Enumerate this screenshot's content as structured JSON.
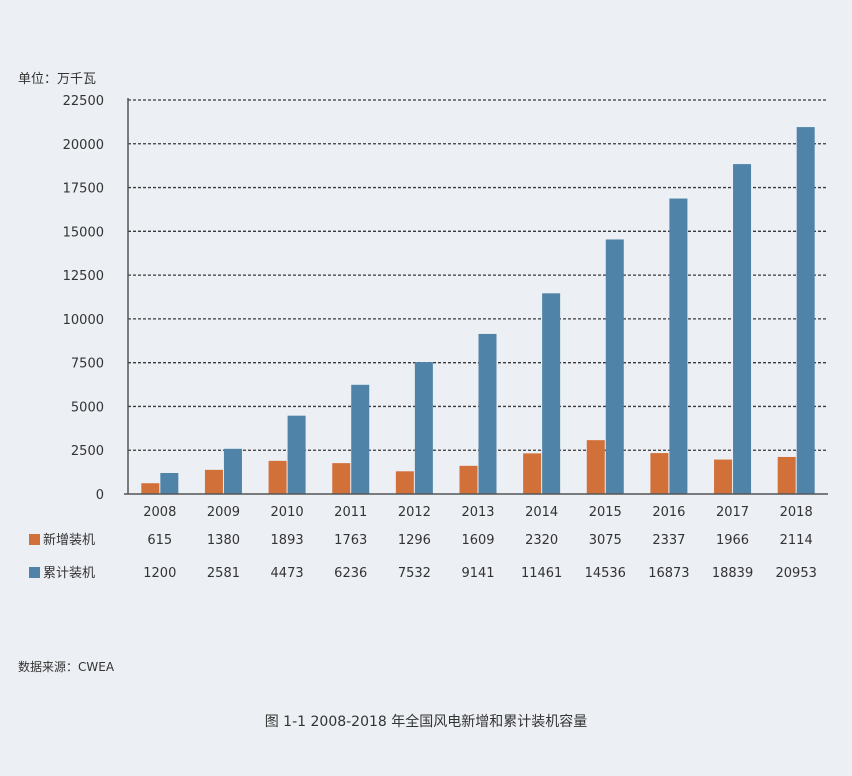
{
  "chart_data": {
    "type": "bar",
    "unit_label": "单位：万千瓦",
    "categories": [
      "2008",
      "2009",
      "2010",
      "2011",
      "2012",
      "2013",
      "2014",
      "2015",
      "2016",
      "2017",
      "2018"
    ],
    "series": [
      {
        "name": "新增装机",
        "color": "#d2703a",
        "values": [
          615,
          1380,
          1893,
          1763,
          1296,
          1609,
          2320,
          3075,
          2337,
          1966,
          2114
        ]
      },
      {
        "name": "累计装机",
        "color": "#5083a8",
        "values": [
          1200,
          2581,
          4473,
          6236,
          7532,
          9141,
          11461,
          14536,
          16873,
          18839,
          20953
        ]
      }
    ],
    "ylim": [
      0,
      22500
    ],
    "yticks": [
      0,
      2500,
      5000,
      7500,
      10000,
      12500,
      15000,
      17500,
      20000,
      22500
    ],
    "grid": true,
    "legend": "table-below"
  },
  "source": "数据来源：CWEA",
  "caption": "图 1-1  2008-2018 年全国风电新增和累计装机容量"
}
